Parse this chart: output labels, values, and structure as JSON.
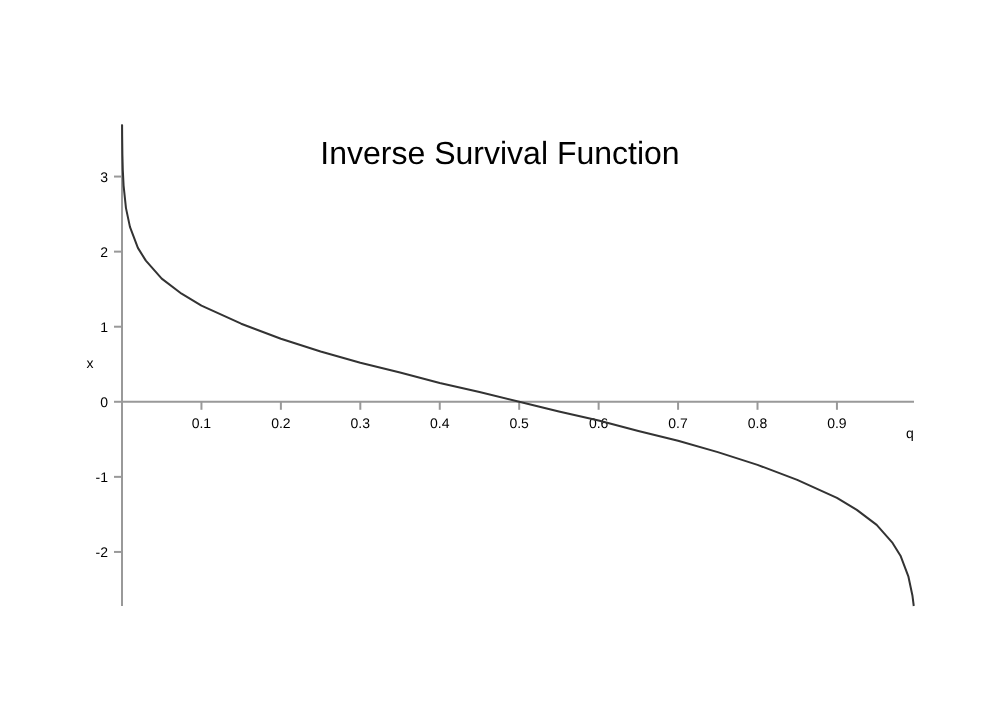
{
  "chart_data": {
    "type": "line",
    "title": "Inverse Survival Function",
    "xlabel": "q",
    "ylabel": "x",
    "x": [
      0.00011,
      0.0002,
      0.0005,
      0.001,
      0.002,
      0.005,
      0.01,
      0.02,
      0.03,
      0.05,
      0.075,
      0.1,
      0.15,
      0.2,
      0.25,
      0.3,
      0.35,
      0.4,
      0.45,
      0.5,
      0.55,
      0.6,
      0.65,
      0.7,
      0.75,
      0.8,
      0.85,
      0.9,
      0.925,
      0.95,
      0.97,
      0.98,
      0.99,
      0.995,
      0.9967
    ],
    "series": [
      {
        "color": "#333333",
        "values": [
          3.69,
          3.54,
          3.29,
          3.09,
          2.88,
          2.58,
          2.33,
          2.05,
          1.88,
          1.64,
          1.44,
          1.28,
          1.04,
          0.84,
          0.67,
          0.52,
          0.39,
          0.25,
          0.13,
          0,
          -0.13,
          -0.25,
          -0.39,
          -0.52,
          -0.67,
          -0.84,
          -1.04,
          -1.28,
          -1.44,
          -1.64,
          -1.88,
          -2.05,
          -2.33,
          -2.58,
          -2.72
        ]
      }
    ],
    "xlim": [
      0,
      0.997
    ],
    "ylim": [
      -2.72,
      3.7
    ],
    "xticks": [
      0.1,
      0.2,
      0.3,
      0.4,
      0.5,
      0.6,
      0.7,
      0.8,
      0.9
    ],
    "yticks": [
      -2,
      -1,
      0,
      1,
      2,
      3
    ],
    "marker": "none",
    "line_style": "solid"
  }
}
